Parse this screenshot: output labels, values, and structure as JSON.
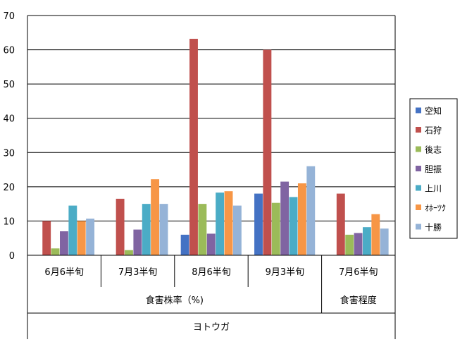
{
  "chart_data": {
    "type": "bar",
    "categories": [
      "6月6半旬",
      "7月3半旬",
      "8月6半旬",
      "9月3半旬",
      "7月6半旬"
    ],
    "group_labels": [
      "食害株率（%)",
      "食害程度"
    ],
    "outer_label": "ヨトウガ",
    "ylim": [
      0,
      70
    ],
    "yticks": [
      "0",
      "10",
      "20",
      "30",
      "40",
      "50",
      "60",
      "70"
    ],
    "grid": true,
    "legend_position": "right",
    "series": [
      {
        "name": "空知",
        "color": "#4472c4",
        "values": [
          0,
          0,
          6,
          18,
          0
        ]
      },
      {
        "name": "石狩",
        "color": "#c0504d",
        "values": [
          10,
          16.5,
          63.2,
          60,
          18
        ]
      },
      {
        "name": "後志",
        "color": "#9bbb59",
        "values": [
          2,
          1.5,
          15,
          15.3,
          6
        ]
      },
      {
        "name": "胆振",
        "color": "#8064a2",
        "values": [
          7,
          7.5,
          6.3,
          21.5,
          6.5
        ]
      },
      {
        "name": "上川",
        "color": "#4bacc6",
        "values": [
          14.5,
          15,
          18.3,
          17,
          8.2
        ]
      },
      {
        "name": "ｵﾎｰﾂｸ",
        "color": "#f79646",
        "values": [
          10,
          22.2,
          18.7,
          21,
          12
        ]
      },
      {
        "name": "十勝",
        "color": "#95b3d7",
        "values": [
          10.7,
          15,
          14.5,
          26,
          7.8
        ]
      }
    ]
  }
}
